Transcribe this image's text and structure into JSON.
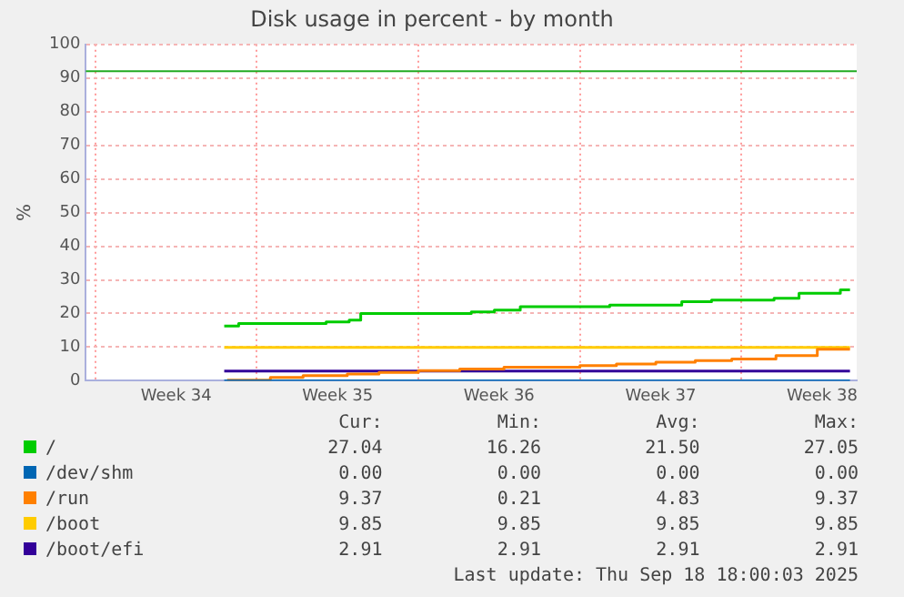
{
  "chart_data": {
    "type": "step",
    "title": "Disk usage in percent - by month",
    "ylabel": "%",
    "xlim": [
      "2025-08-17T14:00",
      "2025-09-20T00:00"
    ],
    "xticks": [
      {
        "value": "2025-08-18",
        "label": null
      },
      {
        "value": "2025-08-21T12:00",
        "label": "Week 34"
      },
      {
        "value": "2025-08-25",
        "label": null
      },
      {
        "value": "2025-08-28T12:00",
        "label": "Week 35"
      },
      {
        "value": "2025-09-01",
        "label": null
      },
      {
        "value": "2025-09-04T12:00",
        "label": "Week 36"
      },
      {
        "value": "2025-09-08",
        "label": null
      },
      {
        "value": "2025-09-11T12:00",
        "label": "Week 37"
      },
      {
        "value": "2025-09-15",
        "label": null
      },
      {
        "value": "2025-09-18T12:00",
        "label": "Week 38"
      }
    ],
    "ylim": [
      0,
      100
    ],
    "yticks": [
      0,
      10,
      20,
      30,
      40,
      50,
      60,
      70,
      80,
      90,
      100
    ],
    "grid": true,
    "legend": "bottom",
    "series": [
      {
        "name": "/",
        "color": "#00cc00",
        "x": [
          "2025-08-23T14:00",
          "2025-08-24T05:00",
          "2025-08-28T00:00",
          "2025-08-29T00:00",
          "2025-08-29T12:00",
          "2025-09-03T07:00",
          "2025-09-04T07:00",
          "2025-09-05T10:00",
          "2025-09-09T07:00",
          "2025-09-12T10:00",
          "2025-09-13T17:00",
          "2025-09-16T10:00",
          "2025-09-17T12:00",
          "2025-09-19T07:00",
          "2025-09-19T17:00"
        ],
        "values": [
          16.3,
          17,
          17.5,
          18,
          20,
          20.5,
          21,
          22,
          22.5,
          23.5,
          24,
          24.5,
          26,
          27,
          27
        ]
      },
      {
        "name": "/dev/shm",
        "color": "#0066b3",
        "x": [
          "2025-08-23T14:00",
          "2025-09-19T17:00"
        ],
        "values": [
          0,
          0
        ]
      },
      {
        "name": "/run",
        "color": "#ff8000",
        "x": [
          "2025-08-23T17:00",
          "2025-08-25T14:00",
          "2025-08-27T00:00",
          "2025-08-28T22:00",
          "2025-08-30T07:00",
          "2025-09-01T00:00",
          "2025-09-02T19:00",
          "2025-09-04T17:00",
          "2025-09-08T00:00",
          "2025-09-09T14:00",
          "2025-09-11T07:00",
          "2025-09-13T00:00",
          "2025-09-14T14:00",
          "2025-09-16T12:00",
          "2025-09-18T07:00",
          "2025-09-19T17:00"
        ],
        "values": [
          0.2,
          1,
          1.5,
          2,
          2.5,
          3,
          3.5,
          4,
          4.5,
          5,
          5.5,
          6,
          6.5,
          7.5,
          9.4,
          9.4
        ]
      },
      {
        "name": "/boot",
        "color": "#ffcc00",
        "x": [
          "2025-08-23T14:00",
          "2025-09-19T17:00"
        ],
        "values": [
          9.9,
          9.9
        ]
      },
      {
        "name": "/boot/efi",
        "color": "#330099",
        "x": [
          "2025-08-23T14:00",
          "2025-09-19T17:00"
        ],
        "values": [
          2.9,
          2.9
        ]
      }
    ],
    "ref_lines": [
      {
        "axis": "y",
        "value": 92,
        "color": "#22aa22"
      }
    ],
    "annotations": [
      "Cur:",
      "Min:",
      "Avg:",
      "Max:",
      "27.04",
      "16.26",
      "21.50",
      "27.05",
      "0.00",
      "0.00",
      "0.00",
      "0.00",
      "9.37",
      "0.21",
      "4.83",
      "9.37",
      "9.85",
      "9.85",
      "9.85",
      "9.85",
      "2.91",
      "2.91",
      "2.91",
      "2.91",
      "Last update: Thu Sep 18 18:00:03 2025"
    ]
  }
}
